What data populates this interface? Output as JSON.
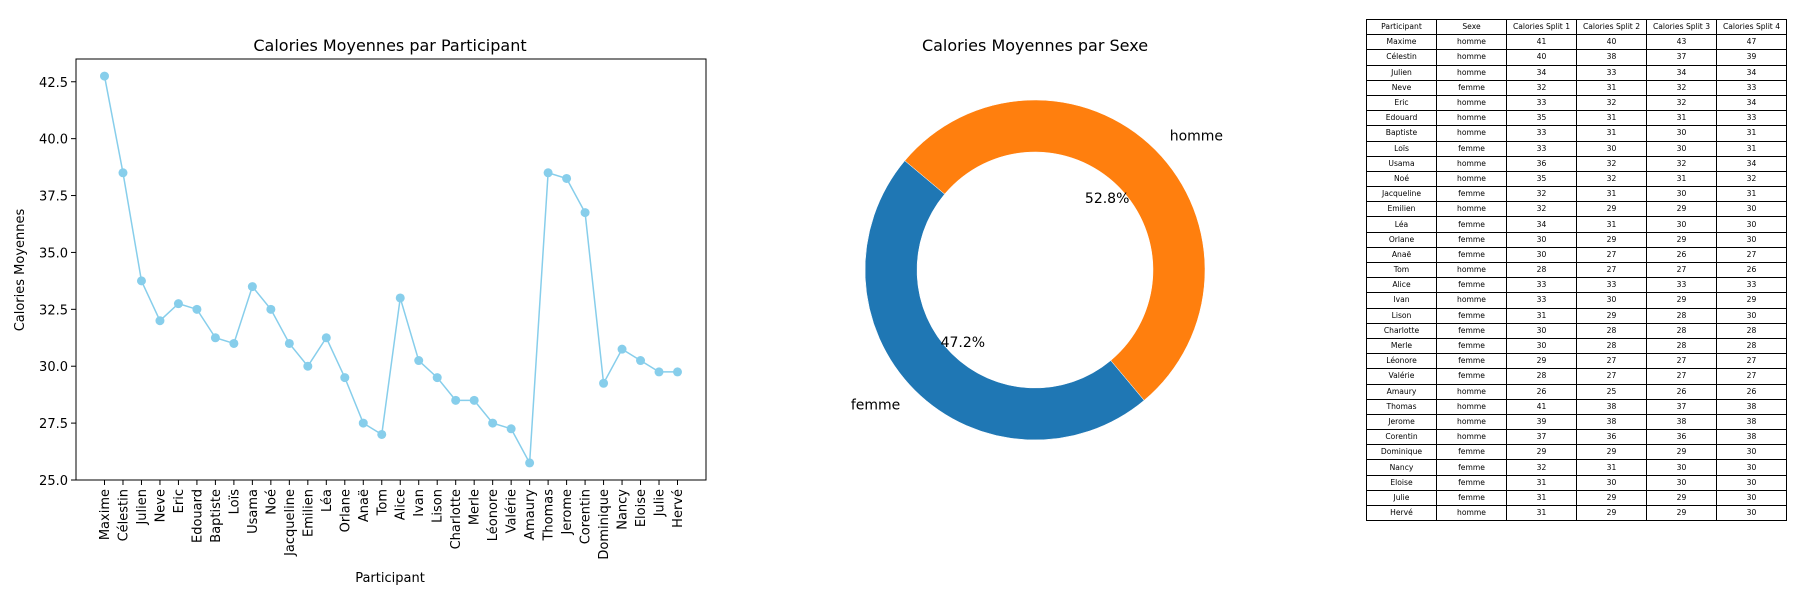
{
  "chart_data": [
    {
      "type": "line",
      "title": "Calories Moyennes par Participant",
      "xlabel": "Participant",
      "ylabel": "Calories Moyennes",
      "ylim": [
        25.0,
        43.5
      ],
      "yticks": [
        "25.0",
        "27.5",
        "30.0",
        "32.5",
        "35.0",
        "37.5",
        "40.0",
        "42.5"
      ],
      "color": "#87ceeb",
      "categories": [
        "Maxime",
        "Célestin",
        "Julien",
        "Neve",
        "Eric",
        "Edouard",
        "Baptiste",
        "Loïs",
        "Usama",
        "Noé",
        "Jacqueline",
        "Emilien",
        "Léa",
        "Orlane",
        "Anaë",
        "Tom",
        "Alice",
        "Ivan",
        "Lison",
        "Charlotte",
        "Merle",
        "Léonore",
        "Valérie",
        "Amaury",
        "Thomas",
        "Jerome",
        "Corentin",
        "Dominique",
        "Nancy",
        "Eloise",
        "Julie",
        "Hervé"
      ],
      "values": [
        42.75,
        38.5,
        33.75,
        32.0,
        32.75,
        32.5,
        31.25,
        31.0,
        33.5,
        32.5,
        31.0,
        30.0,
        31.25,
        29.5,
        27.5,
        27.0,
        33.0,
        30.25,
        29.5,
        28.5,
        28.5,
        27.5,
        27.25,
        25.75,
        38.5,
        38.25,
        36.75,
        29.25,
        30.75,
        30.25,
        29.75,
        29.75
      ]
    },
    {
      "type": "pie",
      "title": "Calories Moyennes par Sexe",
      "slices": [
        {
          "label": "homme",
          "value": 52.8,
          "pct": "52.8%",
          "color": "#ff7f0e"
        },
        {
          "label": "femme",
          "value": 47.2,
          "pct": "47.2%",
          "color": "#1f77b4"
        }
      ]
    },
    {
      "type": "table",
      "columns": [
        "Participant",
        "Sexe",
        "Calories Split 1",
        "Calories Split 2",
        "Calories Split 3",
        "Calories Split 4"
      ],
      "rows": [
        [
          "Maxime",
          "homme",
          "41",
          "40",
          "43",
          "47"
        ],
        [
          "Célestin",
          "homme",
          "40",
          "38",
          "37",
          "39"
        ],
        [
          "Julien",
          "homme",
          "34",
          "33",
          "34",
          "34"
        ],
        [
          "Neve",
          "femme",
          "32",
          "31",
          "32",
          "33"
        ],
        [
          "Eric",
          "homme",
          "33",
          "32",
          "32",
          "34"
        ],
        [
          "Edouard",
          "homme",
          "35",
          "31",
          "31",
          "33"
        ],
        [
          "Baptiste",
          "homme",
          "33",
          "31",
          "30",
          "31"
        ],
        [
          "Loïs",
          "femme",
          "33",
          "30",
          "30",
          "31"
        ],
        [
          "Usama",
          "homme",
          "36",
          "32",
          "32",
          "34"
        ],
        [
          "Noé",
          "homme",
          "35",
          "32",
          "31",
          "32"
        ],
        [
          "Jacqueline",
          "femme",
          "32",
          "31",
          "30",
          "31"
        ],
        [
          "Emilien",
          "homme",
          "32",
          "29",
          "29",
          "30"
        ],
        [
          "Léa",
          "femme",
          "34",
          "31",
          "30",
          "30"
        ],
        [
          "Orlane",
          "femme",
          "30",
          "29",
          "29",
          "30"
        ],
        [
          "Anaë",
          "femme",
          "30",
          "27",
          "26",
          "27"
        ],
        [
          "Tom",
          "homme",
          "28",
          "27",
          "27",
          "26"
        ],
        [
          "Alice",
          "femme",
          "33",
          "33",
          "33",
          "33"
        ],
        [
          "Ivan",
          "homme",
          "33",
          "30",
          "29",
          "29"
        ],
        [
          "Lison",
          "femme",
          "31",
          "29",
          "28",
          "30"
        ],
        [
          "Charlotte",
          "femme",
          "30",
          "28",
          "28",
          "28"
        ],
        [
          "Merle",
          "femme",
          "30",
          "28",
          "28",
          "28"
        ],
        [
          "Léonore",
          "femme",
          "29",
          "27",
          "27",
          "27"
        ],
        [
          "Valérie",
          "femme",
          "28",
          "27",
          "27",
          "27"
        ],
        [
          "Amaury",
          "homme",
          "26",
          "25",
          "26",
          "26"
        ],
        [
          "Thomas",
          "homme",
          "41",
          "38",
          "37",
          "38"
        ],
        [
          "Jerome",
          "homme",
          "39",
          "38",
          "38",
          "38"
        ],
        [
          "Corentin",
          "homme",
          "37",
          "36",
          "36",
          "38"
        ],
        [
          "Dominique",
          "femme",
          "29",
          "29",
          "29",
          "30"
        ],
        [
          "Nancy",
          "femme",
          "32",
          "31",
          "30",
          "30"
        ],
        [
          "Eloise",
          "femme",
          "31",
          "30",
          "30",
          "30"
        ],
        [
          "Julie",
          "femme",
          "31",
          "29",
          "29",
          "30"
        ],
        [
          "Hervé",
          "homme",
          "31",
          "29",
          "29",
          "30"
        ]
      ]
    }
  ]
}
